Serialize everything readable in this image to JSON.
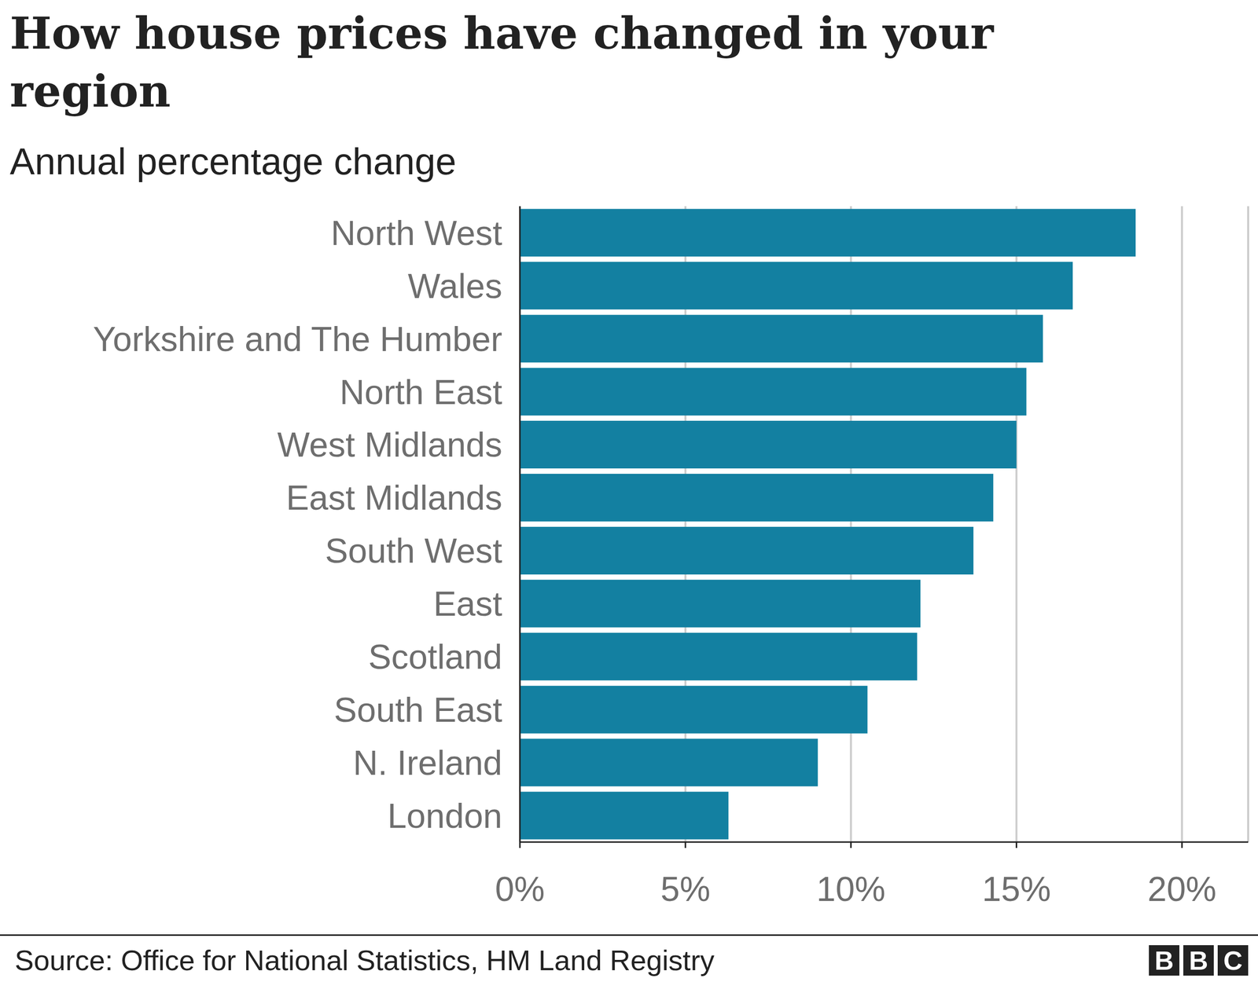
{
  "chart_data": {
    "type": "bar",
    "title": "How house prices have changed in your region",
    "subtitle": "Annual percentage change",
    "orientation": "horizontal",
    "categories": [
      "North West",
      "Wales",
      "Yorkshire and The Humber",
      "North East",
      "West Midlands",
      "East Midlands",
      "South West",
      "East",
      "Scotland",
      "South East",
      "N. Ireland",
      "London"
    ],
    "values": [
      18.6,
      16.7,
      15.8,
      15.3,
      15.0,
      14.3,
      13.7,
      12.1,
      12.0,
      10.5,
      9.0,
      6.3
    ],
    "color": "#1380a1",
    "xlim": [
      0,
      22
    ],
    "xticks": [
      {
        "value": 0,
        "label": "0%"
      },
      {
        "value": 5,
        "label": "5%"
      },
      {
        "value": 10,
        "label": "10%"
      },
      {
        "value": 15,
        "label": "15%"
      },
      {
        "value": 20,
        "label": "20%"
      }
    ],
    "grid": true,
    "source": "Source: Office for National Statistics, HM Land Registry",
    "logo": "BBC"
  }
}
